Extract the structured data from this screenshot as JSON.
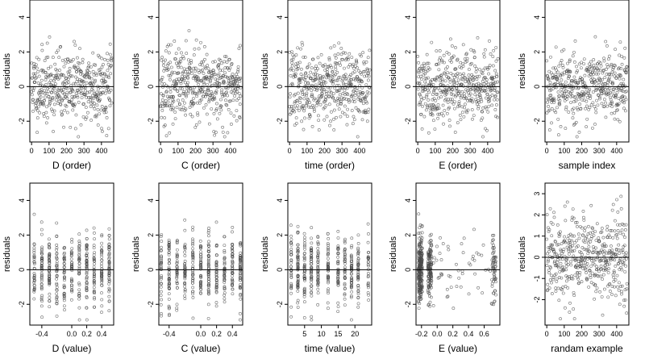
{
  "chart_data": [
    {
      "type": "scatter",
      "row": 0,
      "col": 0,
      "title": "",
      "xlabel": "D (order)",
      "ylabel": "residuals",
      "xlim": [
        -10,
        470
      ],
      "ylim": [
        -3.2,
        5.0
      ],
      "xticks": [
        0,
        100,
        200,
        300,
        400
      ],
      "xtick_labels": [
        "0",
        "100",
        "200",
        "300",
        "400"
      ],
      "yticks": [
        -2,
        0,
        2,
        4
      ],
      "ytick_labels": [
        "-2",
        "0",
        "2",
        "4"
      ],
      "hline": 0,
      "pattern": "index",
      "n_points": 460,
      "seed": 11
    },
    {
      "type": "scatter",
      "row": 0,
      "col": 1,
      "title": "",
      "xlabel": "C (order)",
      "ylabel": "residuals",
      "xlim": [
        -10,
        470
      ],
      "ylim": [
        -3.2,
        5.0
      ],
      "xticks": [
        0,
        100,
        200,
        300,
        400
      ],
      "xtick_labels": [
        "0",
        "100",
        "200",
        "300",
        "400"
      ],
      "yticks": [
        -2,
        0,
        2,
        4
      ],
      "ytick_labels": [
        "-2",
        "0",
        "2",
        "4"
      ],
      "hline": 0,
      "pattern": "index",
      "n_points": 460,
      "seed": 23
    },
    {
      "type": "scatter",
      "row": 0,
      "col": 2,
      "title": "",
      "xlabel": "time (order)",
      "ylabel": "residuals",
      "xlim": [
        -10,
        470
      ],
      "ylim": [
        -3.2,
        5.0
      ],
      "xticks": [
        0,
        100,
        200,
        300,
        400
      ],
      "xtick_labels": [
        "0",
        "100",
        "200",
        "300",
        "400"
      ],
      "yticks": [
        -2,
        0,
        2,
        4
      ],
      "ytick_labels": [
        "-2",
        "0",
        "2",
        "4"
      ],
      "hline": 0,
      "pattern": "index",
      "n_points": 460,
      "seed": 37
    },
    {
      "type": "scatter",
      "row": 0,
      "col": 3,
      "title": "",
      "xlabel": "E (order)",
      "ylabel": "residuals",
      "xlim": [
        -10,
        470
      ],
      "ylim": [
        -3.2,
        5.0
      ],
      "xticks": [
        0,
        100,
        200,
        300,
        400
      ],
      "xtick_labels": [
        "0",
        "100",
        "200",
        "300",
        "400"
      ],
      "yticks": [
        -2,
        0,
        2,
        4
      ],
      "ytick_labels": [
        "-2",
        "0",
        "2",
        "4"
      ],
      "hline": 0,
      "pattern": "index",
      "n_points": 460,
      "seed": 41
    },
    {
      "type": "scatter",
      "row": 0,
      "col": 4,
      "title": "",
      "xlabel": "sample index",
      "ylabel": "residuals",
      "xlim": [
        -10,
        470
      ],
      "ylim": [
        -3.2,
        5.0
      ],
      "xticks": [
        0,
        100,
        200,
        300,
        400
      ],
      "xtick_labels": [
        "0",
        "100",
        "200",
        "300",
        "400"
      ],
      "yticks": [
        -2,
        0,
        2,
        4
      ],
      "ytick_labels": [
        "-2",
        "0",
        "2",
        "4"
      ],
      "hline": 0,
      "pattern": "index",
      "n_points": 460,
      "seed": 53
    },
    {
      "type": "scatter",
      "row": 1,
      "col": 0,
      "title": "",
      "xlabel": "D (value)",
      "ylabel": "residuals",
      "xlim": [
        -0.56,
        0.56
      ],
      "ylim": [
        -3.2,
        5.0
      ],
      "xticks": [
        -0.4,
        0.0,
        0.2,
        0.4
      ],
      "xtick_labels": [
        "-0.4",
        "0.0",
        "0.2",
        "0.4"
      ],
      "yticks": [
        -2,
        0,
        2,
        4
      ],
      "ytick_labels": [
        "-2",
        "0",
        "2",
        "4"
      ],
      "hline": 0,
      "pattern": "discrete",
      "levels": [
        -0.5,
        -0.4,
        -0.3,
        -0.2,
        -0.1,
        0.0,
        0.1,
        0.2,
        0.3,
        0.4,
        0.5
      ],
      "n_points": 460,
      "seed": 61
    },
    {
      "type": "scatter",
      "row": 1,
      "col": 1,
      "title": "",
      "xlabel": "C (value)",
      "ylabel": "residuals",
      "xlim": [
        -0.53,
        0.53
      ],
      "ylim": [
        -3.2,
        5.0
      ],
      "xticks": [
        -0.4,
        0.0,
        0.2,
        0.4
      ],
      "xtick_labels": [
        "-0.4",
        "0.0",
        "0.2",
        "0.4"
      ],
      "yticks": [
        -2,
        0,
        2,
        4
      ],
      "ytick_labels": [
        "-2",
        "0",
        "2",
        "4"
      ],
      "hline": 0,
      "pattern": "discrete",
      "levels": [
        -0.5,
        -0.4,
        -0.3,
        -0.2,
        -0.1,
        0.0,
        0.1,
        0.2,
        0.3,
        0.4,
        0.5
      ],
      "n_points": 460,
      "seed": 71
    },
    {
      "type": "scatter",
      "row": 1,
      "col": 2,
      "title": "",
      "xlabel": "time (value)",
      "ylabel": "residuals",
      "xlim": [
        0,
        25
      ],
      "ylim": [
        -3.2,
        5.0
      ],
      "xticks": [
        5,
        10,
        15,
        20
      ],
      "xtick_labels": [
        "5",
        "10",
        "15",
        "20"
      ],
      "yticks": [
        -2,
        0,
        2,
        4
      ],
      "ytick_labels": [
        "-2",
        "0",
        "2",
        "4"
      ],
      "hline": 0,
      "pattern": "discrete",
      "levels": [
        1,
        3,
        5,
        7,
        9,
        12,
        15,
        17,
        19,
        21,
        24
      ],
      "n_points": 460,
      "seed": 83
    },
    {
      "type": "scatter",
      "row": 1,
      "col": 3,
      "title": "",
      "xlabel": "E (value)",
      "ylabel": "residuals",
      "xlim": [
        -0.27,
        0.8
      ],
      "ylim": [
        -3.2,
        5.0
      ],
      "xticks": [
        -0.2,
        0.0,
        0.2,
        0.4,
        0.6
      ],
      "xtick_labels": [
        "-0.2",
        "0.0",
        "0.2",
        "0.4",
        "0.6"
      ],
      "yticks": [
        -2,
        0,
        2,
        4
      ],
      "ytick_labels": [
        "-2",
        "0",
        "2",
        "4"
      ],
      "hline": 0,
      "pattern": "skewed",
      "n_points": 460,
      "seed": 97
    },
    {
      "type": "scatter",
      "row": 1,
      "col": 4,
      "title": "",
      "xlabel": "randam example",
      "ylabel": "residuals",
      "xlim": [
        -10,
        470
      ],
      "ylim": [
        -3.2,
        3.5
      ],
      "xticks": [
        0,
        100,
        200,
        300,
        400
      ],
      "xtick_labels": [
        "0",
        "100",
        "200",
        "300",
        "400"
      ],
      "yticks": [
        -2,
        -1,
        0,
        1,
        2,
        3
      ],
      "ytick_labels": [
        "-2",
        "-1",
        "0",
        "1",
        "2",
        "3"
      ],
      "hline": 0,
      "pattern": "random",
      "n_points": 460,
      "seed": 109
    }
  ],
  "style": {
    "point_color": "#4a4a4a",
    "frame_color": "#000000",
    "background": "#ffffff"
  }
}
